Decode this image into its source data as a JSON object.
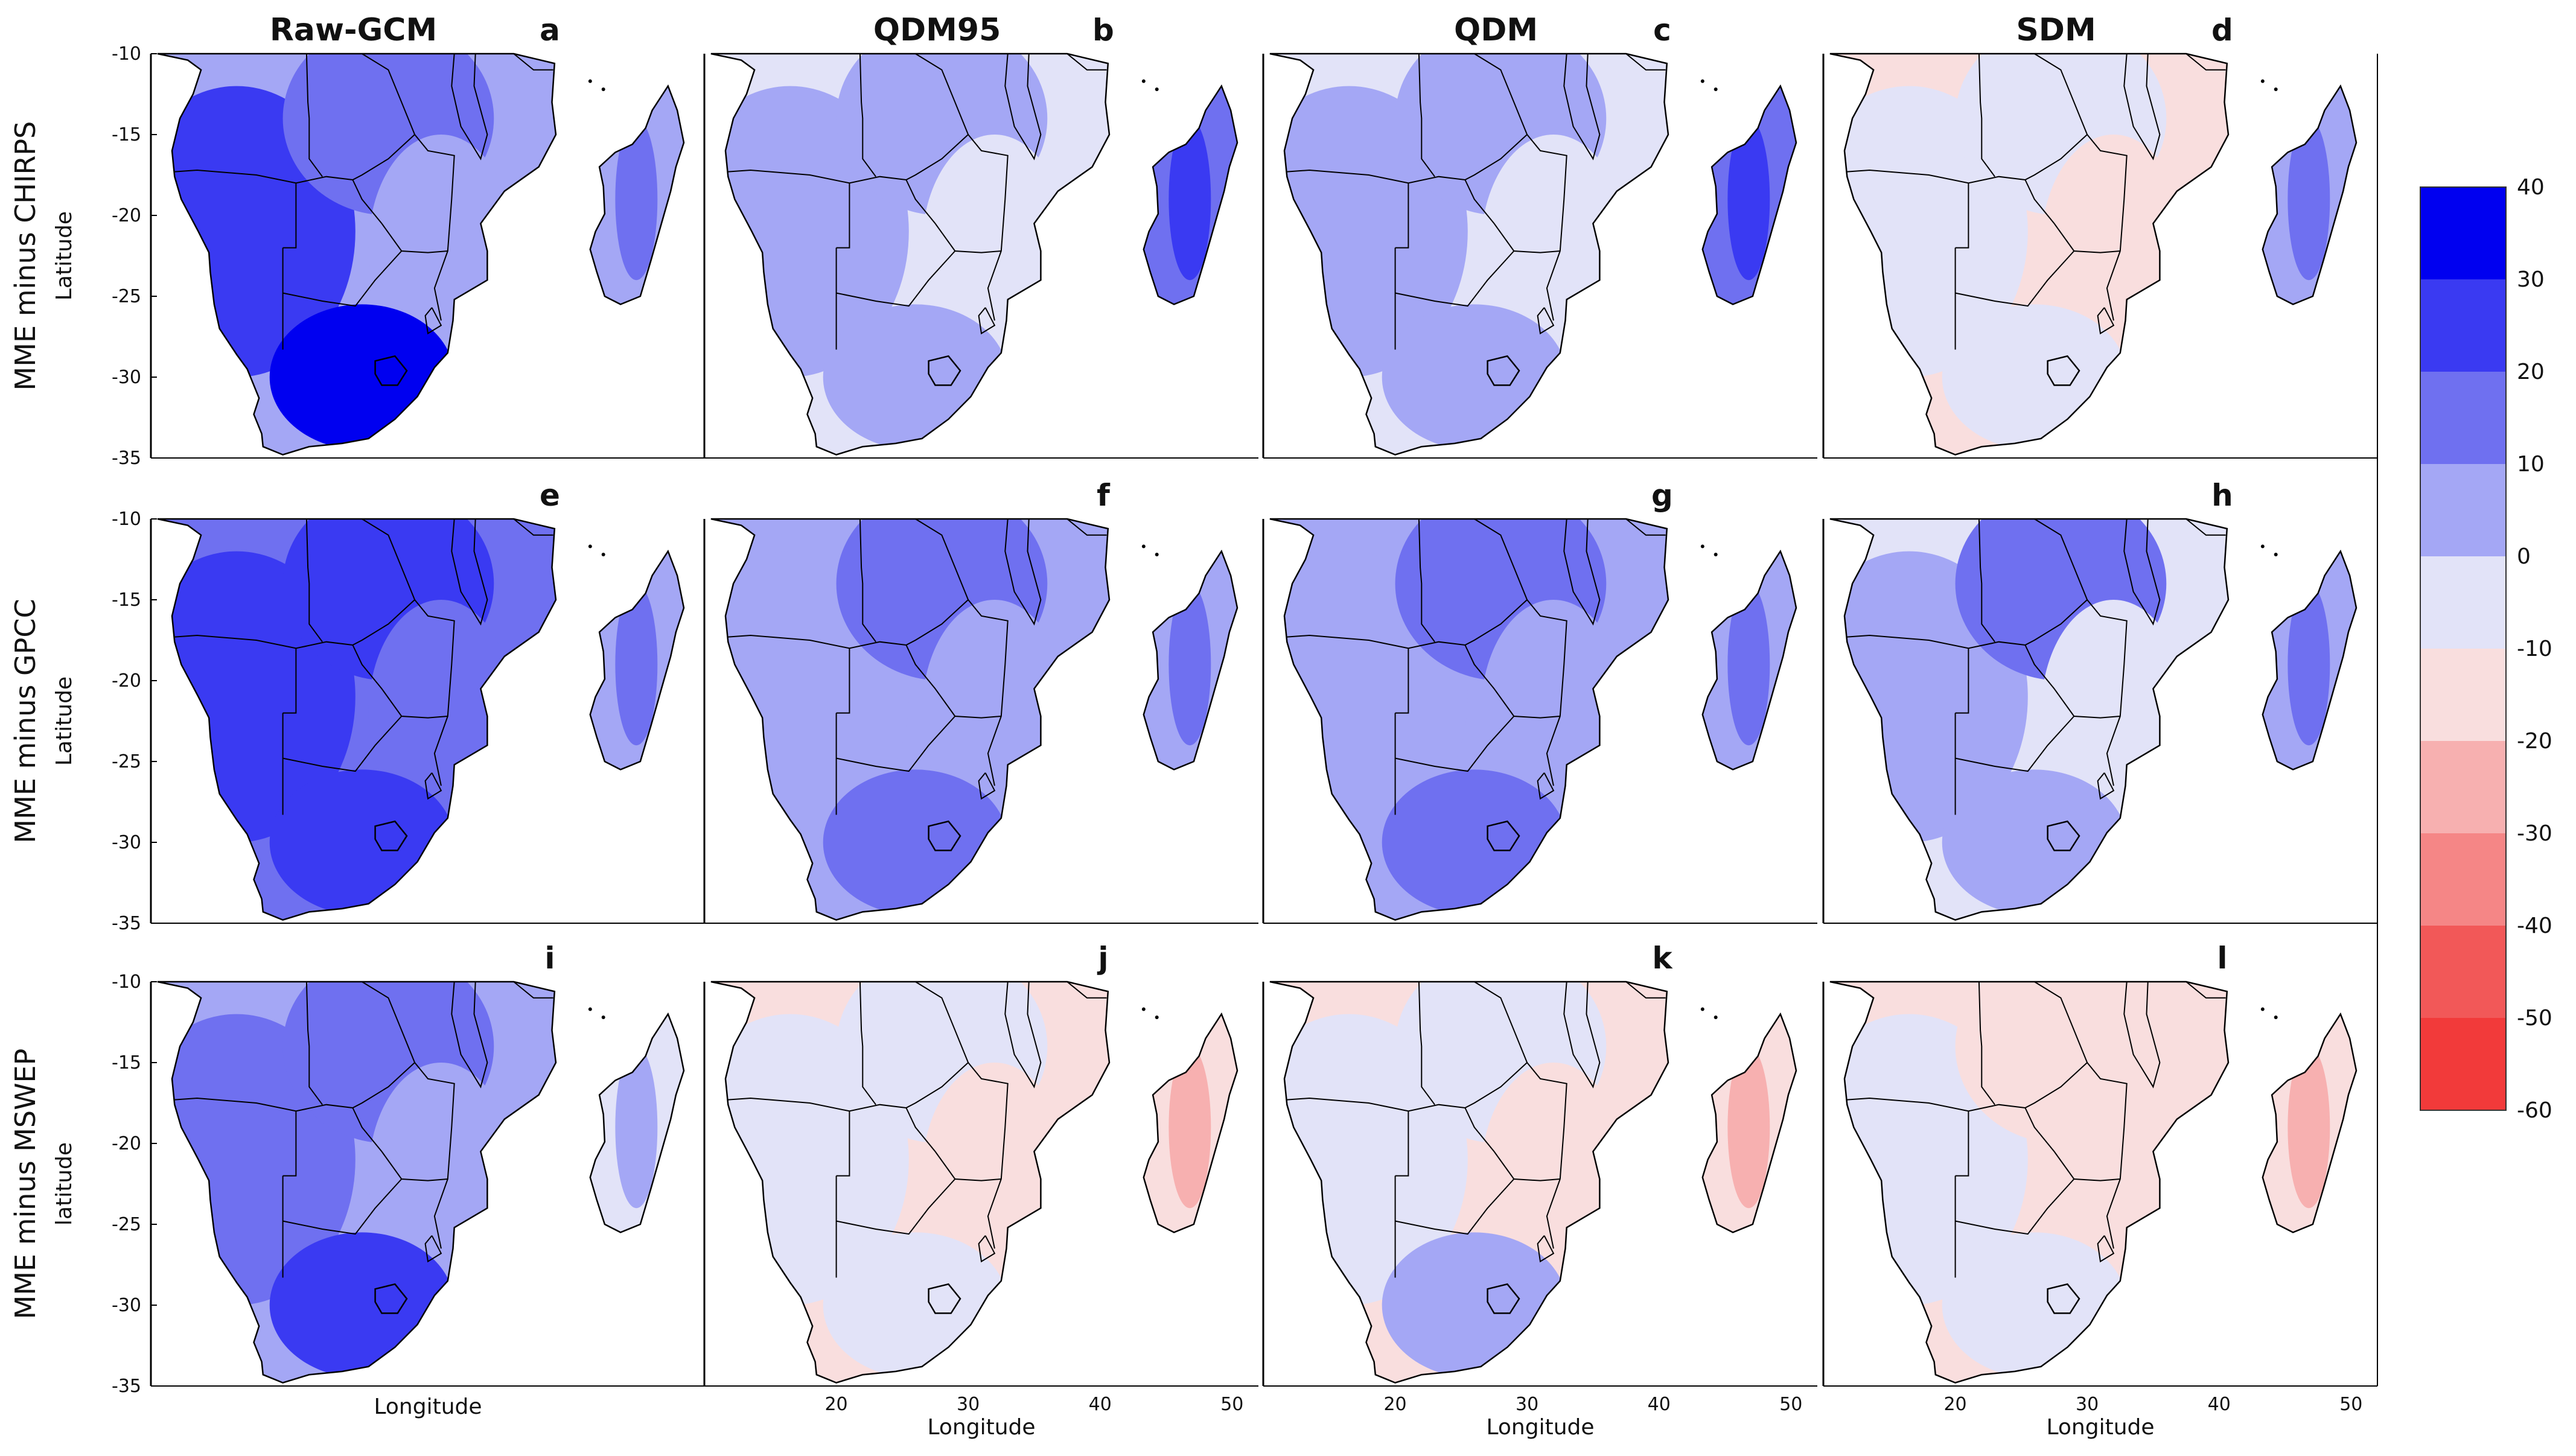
{
  "chart_data": {
    "type": "heatmap",
    "description_rows": [
      "MME minus CHIRPS",
      "MME minus GPCC",
      "MME minus MSWEP"
    ],
    "columns": [
      "Raw-GCM",
      "QDM95",
      "QDM",
      "SDM"
    ],
    "panel_letters": [
      [
        "a",
        "b",
        "c",
        "d"
      ],
      [
        "e",
        "f",
        "g",
        "h"
      ],
      [
        "i",
        "j",
        "k",
        "l"
      ]
    ],
    "ylabels": [
      "Latitude",
      "Latitude",
      "latitude"
    ],
    "xlabels": [
      "Longitude",
      "Longitude",
      "Longitude",
      "Longitude"
    ],
    "xlim": [
      10,
      52
    ],
    "ylim": [
      -35,
      -10
    ],
    "yticks": [
      -10,
      -15,
      -20,
      -25,
      -30,
      -35
    ],
    "xticks": [
      20,
      30,
      40,
      50
    ],
    "colorbar": {
      "levels": [
        40,
        30,
        20,
        10,
        0,
        -10,
        -20,
        -30,
        -40,
        -50,
        -60
      ],
      "colors": [
        "#0000f0",
        "#3a3af2",
        "#6f70f0",
        "#a4a7f5",
        "#e2e3f8",
        "#f9dede",
        "#f7b0b0",
        "#f58686",
        "#f25858",
        "#f23a3a",
        "#ff0000"
      ]
    },
    "panel_levels": [
      [
        [
          30,
          20,
          10,
          40,
          20
        ],
        [
          10,
          10,
          0,
          10,
          30
        ],
        [
          10,
          10,
          0,
          10,
          30
        ],
        [
          0,
          0,
          -10,
          0,
          20
        ]
      ],
      [
        [
          30,
          30,
          20,
          30,
          20
        ],
        [
          10,
          20,
          10,
          20,
          20
        ],
        [
          10,
          20,
          10,
          20,
          20
        ],
        [
          10,
          20,
          0,
          10,
          20
        ]
      ],
      [
        [
          20,
          20,
          10,
          30,
          10
        ],
        [
          0,
          0,
          -10,
          0,
          -20
        ],
        [
          0,
          0,
          -10,
          10,
          -20
        ],
        [
          0,
          -10,
          -10,
          0,
          -20
        ]
      ]
    ]
  }
}
